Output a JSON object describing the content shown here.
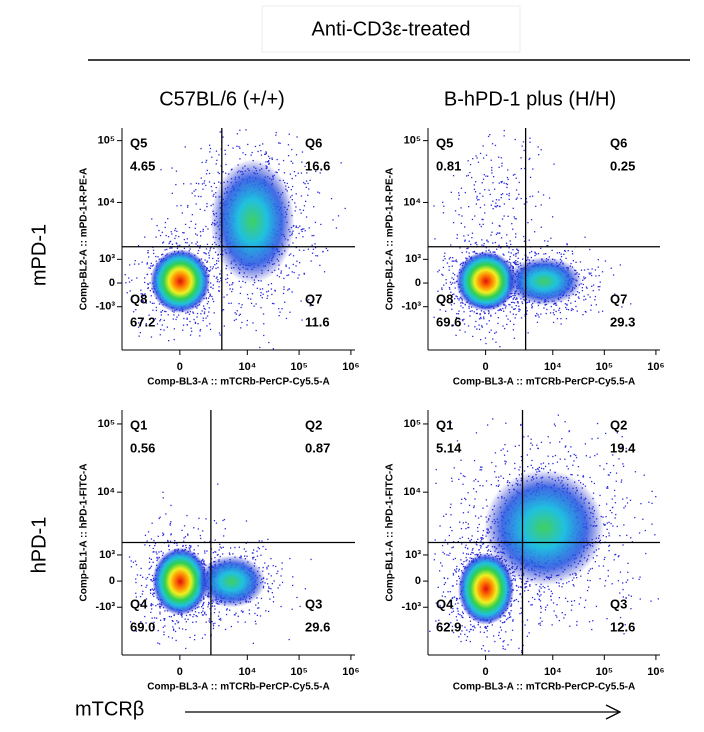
{
  "header": "Anti-CD3ε-treated",
  "columns": [
    "C57BL/6 (+/+)",
    "B-hPD-1 plus (H/H)"
  ],
  "rows": [
    "mPD-1",
    "hPD-1"
  ],
  "x_title": "mTCRβ",
  "chart_data": [
    {
      "type": "scatter",
      "xlabel": "Comp-BL3-A :: mTCRb-PerCP-Cy5.5-A",
      "ylabel": "Comp-BL2-A :: mPD-1-R-PE-A",
      "xscale": "biexponential",
      "yscale": "biexponential",
      "xlim": [
        -6500,
        1200000
      ],
      "ylim": [
        -6000,
        160000
      ],
      "xticks": [
        0,
        {
          "value": 10000,
          "label": "10⁴"
        },
        {
          "value": 100000,
          "label": "10⁵"
        },
        {
          "value": 1000000,
          "label": "10⁶"
        }
      ],
      "yticks": [
        {
          "value": -1000,
          "label": "-10³"
        },
        0,
        {
          "value": 1000,
          "label": "10³"
        },
        {
          "value": 10000,
          "label": "10⁴"
        },
        {
          "value": 100000,
          "label": "10⁵"
        }
      ],
      "gate": {
        "x": 3150,
        "y": 1800
      },
      "quadrants": {
        "names": [
          "Q5",
          "Q6",
          "Q7",
          "Q8"
        ],
        "values": [
          4.65,
          16.6,
          11.6,
          67.2
        ],
        "value_labels": [
          "4.65",
          "16.6",
          "11.6",
          "67.2"
        ]
      }
    },
    {
      "type": "scatter",
      "xlabel": "Comp-BL3-A :: mTCRb-PerCP-Cy5.5-A",
      "ylabel": "Comp-BL2-A :: mPD-1-R-PE-A",
      "xscale": "biexponential",
      "yscale": "biexponential",
      "xlim": [
        -6500,
        1200000
      ],
      "ylim": [
        -6000,
        160000
      ],
      "xticks": [
        0,
        {
          "value": 10000,
          "label": "10⁴"
        },
        {
          "value": 100000,
          "label": "10⁵"
        },
        {
          "value": 1000000,
          "label": "10⁶"
        }
      ],
      "yticks": [
        {
          "value": -1000,
          "label": "-10³"
        },
        0,
        {
          "value": 1000,
          "label": "10³"
        },
        {
          "value": 10000,
          "label": "10⁴"
        },
        {
          "value": 100000,
          "label": "10⁵"
        }
      ],
      "gate": {
        "x": 2900,
        "y": 1800
      },
      "quadrants": {
        "names": [
          "Q5",
          "Q6",
          "Q7",
          "Q8"
        ],
        "values": [
          0.81,
          0.25,
          29.3,
          69.6
        ],
        "value_labels": [
          "0.81",
          "0.25",
          "29.3",
          "69.6"
        ]
      }
    },
    {
      "type": "scatter",
      "xlabel": "Comp-BL3-A :: mTCRb-PerCP-Cy5.5-A",
      "ylabel": "Comp-BL1-A :: hPD-1-FITC-A",
      "xscale": "biexponential",
      "yscale": "biexponential",
      "xlim": [
        -6500,
        1200000
      ],
      "ylim": [
        -6000,
        160000
      ],
      "xticks": [
        0,
        {
          "value": 10000,
          "label": "10⁴"
        },
        {
          "value": 100000,
          "label": "10⁵"
        },
        {
          "value": 1000000,
          "label": "10⁶"
        }
      ],
      "yticks": [
        {
          "value": -1000,
          "label": "-10³"
        },
        0,
        {
          "value": 1000,
          "label": "10³"
        },
        {
          "value": 10000,
          "label": "10⁴"
        },
        {
          "value": 100000,
          "label": "10⁵"
        }
      ],
      "gate": {
        "x": 1860,
        "y": 1700
      },
      "quadrants": {
        "names": [
          "Q1",
          "Q2",
          "Q3",
          "Q4"
        ],
        "values": [
          0.56,
          0.87,
          29.6,
          69.0
        ],
        "value_labels": [
          "0.56",
          "0.87",
          "29.6",
          "69.0"
        ]
      }
    },
    {
      "type": "scatter",
      "xlabel": "Comp-BL3-A :: mTCRb-PerCP-Cy5.5-A",
      "ylabel": "Comp-BL1-A :: hPD-1-FITC-A",
      "xscale": "biexponential",
      "yscale": "biexponential",
      "xlim": [
        -6500,
        1200000
      ],
      "ylim": [
        -6000,
        160000
      ],
      "xticks": [
        0,
        {
          "value": 10000,
          "label": "10⁴"
        },
        {
          "value": 100000,
          "label": "10⁵"
        },
        {
          "value": 1000000,
          "label": "10⁶"
        }
      ],
      "yticks": [
        {
          "value": -1000,
          "label": "-10³"
        },
        0,
        {
          "value": 1000,
          "label": "10³"
        },
        {
          "value": 10000,
          "label": "10⁴"
        },
        {
          "value": 100000,
          "label": "10⁵"
        }
      ],
      "gate": {
        "x": 2500,
        "y": 1700
      },
      "quadrants": {
        "names": [
          "Q1",
          "Q2",
          "Q3",
          "Q4"
        ],
        "values": [
          5.14,
          19.4,
          12.6,
          62.9
        ],
        "value_labels": [
          "5.14",
          "19.4",
          "12.6",
          "62.9"
        ]
      }
    }
  ]
}
